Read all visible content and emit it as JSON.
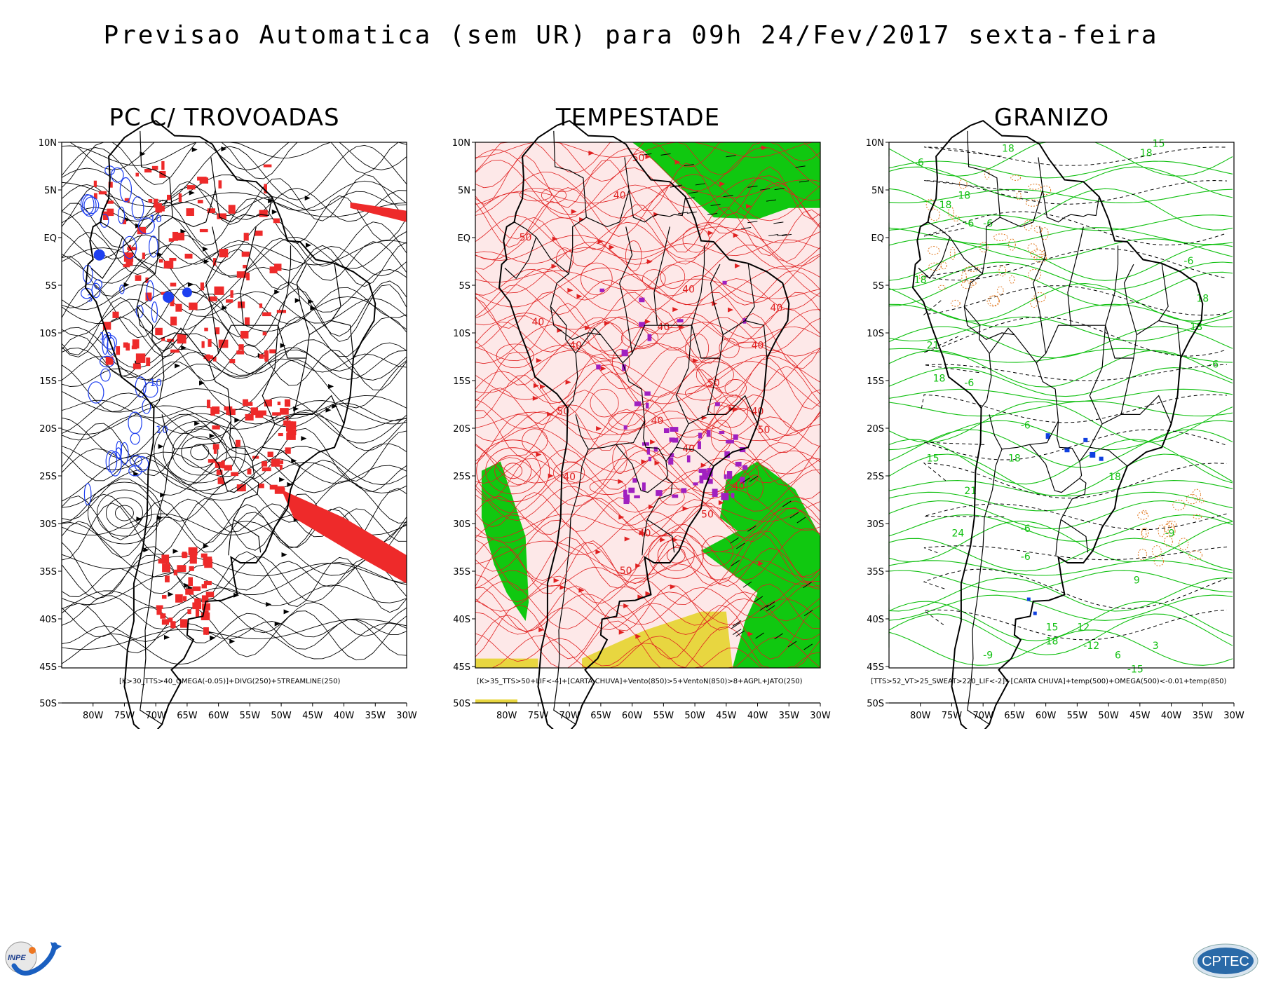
{
  "title": "Previsao Automatica (sem UR) para 09h 24/Fev/2017 sexta-feira",
  "lat_labels": [
    "10N",
    "5N",
    "EQ",
    "5S",
    "10S",
    "15S",
    "20S",
    "25S",
    "30S",
    "35S",
    "40S",
    "45S",
    "50S"
  ],
  "lon_labels": [
    "80W",
    "75W",
    "70W",
    "65W",
    "60W",
    "55W",
    "50W",
    "45W",
    "40W",
    "35W",
    "30W"
  ],
  "panels": [
    {
      "title": "PC C/ TROVOADAS",
      "caption": "[K>30_TTS>40_OMEGA(-0.05)]+DIVG(250)+5TREAMLINE(250)",
      "contour_labels": [
        "10",
        "10",
        "10",
        "10",
        "3"
      ],
      "colors": {
        "streamlines": "#000000",
        "contours": "#1e3ff0",
        "shade": "#ee2a2a"
      }
    },
    {
      "title": "TEMPESTADE",
      "caption": "[K>35_TTS>50+LIF<-4]+[CARTA CHUVA]+Vento(850)>5+VentoN(850)>8+AGPL+JATO(250)",
      "contour_labels": [
        "50",
        "40",
        "50",
        "40",
        "40",
        "50",
        "40",
        "50",
        "40",
        "40",
        "50",
        "40",
        "40",
        "40",
        "50",
        "40",
        "40",
        "40",
        "50",
        "40"
      ],
      "colors": {
        "streamlines": "#e02020",
        "shade_green": "#10c810",
        "shade_yellow": "#e8d640",
        "shade_purple": "#a020c0"
      }
    },
    {
      "title": "GRANIZO",
      "caption": "[TTS>52_VT>25_SWEAT>220_LIF<-2]+[CARTA CHUVA]+temp(500)+OMEGA(500)<-0.01+temp(850)",
      "contour_labels": [
        "18",
        "15",
        "18",
        "-6",
        "-6",
        "-6",
        "18",
        "18",
        "18",
        "21",
        "18",
        "-6",
        "-6",
        "18",
        "15",
        "21",
        "24",
        "-6",
        "-6",
        "-9",
        "9",
        "12",
        "-12",
        "6",
        "3",
        "-15",
        "18",
        "15",
        "-9",
        "18",
        "18",
        "-6",
        "18",
        "-6"
      ],
      "colors": {
        "temp850": "#10c010",
        "temp500": "#000000",
        "omega": "#e07820",
        "shade_blue": "#1040e0"
      }
    }
  ],
  "logos": {
    "left": "INPE",
    "right": "CPTEC"
  }
}
